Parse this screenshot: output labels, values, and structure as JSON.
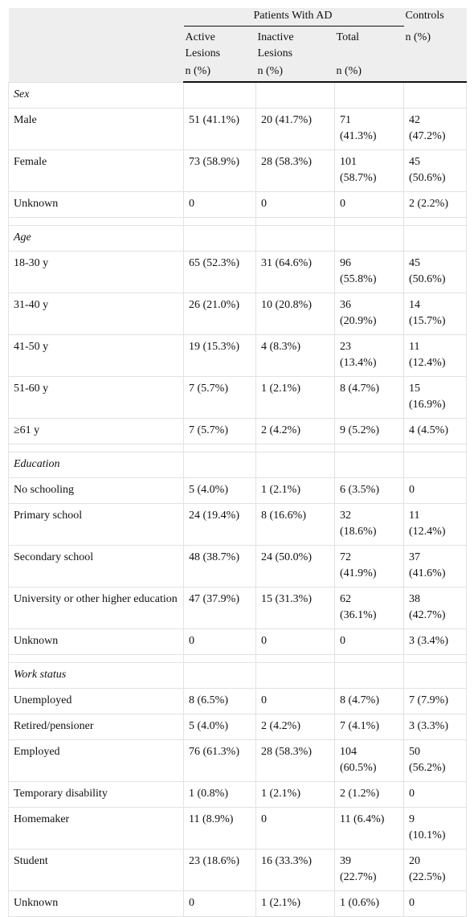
{
  "table": {
    "header": {
      "group": "Patients With AD",
      "controls": "Controls",
      "columns": [
        "Active Lesions",
        "Inactive Lesions",
        "Total"
      ],
      "units": [
        "n (%)",
        "n (%)",
        "n (%)",
        "n (%)"
      ]
    },
    "sections": [
      {
        "title": "Sex",
        "rows": [
          [
            "Male",
            "51 (41.1%)",
            "20 (41.7%)",
            "71 (41.3%)",
            "42 (47.2%)"
          ],
          [
            "Female",
            "73 (58.9%)",
            "28 (58.3%)",
            "101 (58.7%)",
            "45 (50.6%)"
          ],
          [
            "Unknown",
            "0",
            "0",
            "0",
            "2 (2.2%)"
          ]
        ]
      },
      {
        "title": "Age",
        "rows": [
          [
            "18-30 y",
            "65 (52.3%)",
            "31 (64.6%)",
            "96 (55.8%)",
            "45 (50.6%)"
          ],
          [
            "31-40 y",
            "26 (21.0%)",
            "10 (20.8%)",
            "36 (20.9%)",
            "14 (15.7%)"
          ],
          [
            "41-50 y",
            "19 (15.3%)",
            "4 (8.3%)",
            "23 (13.4%)",
            "11 (12.4%)"
          ],
          [
            "51-60 y",
            "7 (5.7%)",
            "1 (2.1%)",
            "8 (4.7%)",
            "15 (16.9%)"
          ],
          [
            "≥61 y",
            "7 (5.7%)",
            "2 (4.2%)",
            "9 (5.2%)",
            "4 (4.5%)"
          ]
        ]
      },
      {
        "title": "Education",
        "rows": [
          [
            "No schooling",
            "5 (4.0%)",
            "1 (2.1%)",
            "6 (3.5%)",
            "0"
          ],
          [
            "Primary school",
            "24 (19.4%)",
            "8 (16.6%)",
            "32 (18.6%)",
            "11 (12.4%)"
          ],
          [
            "Secondary school",
            "48 (38.7%)",
            "24 (50.0%)",
            "72 (41.9%)",
            "37 (41.6%)"
          ],
          [
            "University or other higher education",
            "47 (37.9%)",
            "15 (31.3%)",
            "62 (36.1%)",
            "38 (42.7%)"
          ],
          [
            "Unknown",
            "0",
            "0",
            "0",
            "3 (3.4%)"
          ]
        ]
      },
      {
        "title": "Work status",
        "rows": [
          [
            "Unemployed",
            "8 (6.5%)",
            "0",
            "8 (4.7%)",
            "7 (7.9%)"
          ],
          [
            "Retired/pensioner",
            "5 (4.0%)",
            "2 (4.2%)",
            "7 (4.1%)",
            "3 (3.3%)"
          ],
          [
            "Employed",
            "76 (61.3%)",
            "28 (58.3%)",
            "104 (60.5%)",
            "50 (56.2%)"
          ],
          [
            "Temporary disability",
            "1 (0.8%)",
            "1 (2.1%)",
            "2 (1.2%)",
            "0"
          ],
          [
            "Homemaker",
            "11 (8.9%)",
            "0",
            "11 (6.4%)",
            "9 (10.1%)"
          ],
          [
            "Student",
            "23 (18.6%)",
            "16 (33.3%)",
            "39 (22.7%)",
            "20 (22.5%)"
          ],
          [
            "Unknown",
            "0",
            "1 (2.1%)",
            "1 (0.6%)",
            "0"
          ]
        ]
      }
    ]
  }
}
